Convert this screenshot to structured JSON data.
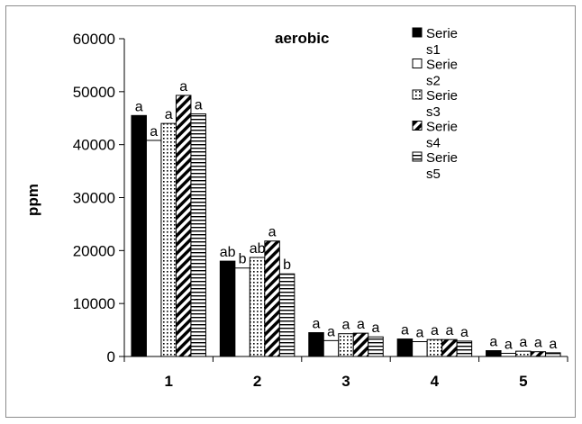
{
  "chart_data": {
    "type": "bar",
    "title": "aerobic",
    "xlabel": "",
    "ylabel": "ppm",
    "ylim": [
      0,
      60000
    ],
    "yticks": [
      "0",
      "10000",
      "20000",
      "30000",
      "40000",
      "50000",
      "60000"
    ],
    "categories": [
      "1",
      "2",
      "3",
      "4",
      "5"
    ],
    "legend_position": "top-right",
    "series": [
      {
        "name": "Series1",
        "legend_line1": "Serie",
        "legend_line2": "s1",
        "pattern": "solid",
        "values": [
          45500,
          18000,
          4500,
          3300,
          1100
        ],
        "letters": [
          "a",
          "ab",
          "a",
          "a",
          "a"
        ]
      },
      {
        "name": "Series2",
        "legend_line1": "Serie",
        "legend_line2": "s2",
        "pattern": "white",
        "values": [
          40800,
          16700,
          3000,
          2800,
          600
        ],
        "letters": [
          "a",
          "b",
          "a",
          "a",
          "a"
        ]
      },
      {
        "name": "Series3",
        "legend_line1": "Serie",
        "legend_line2": "s3",
        "pattern": "dots",
        "values": [
          44000,
          18700,
          4300,
          3200,
          1000
        ],
        "letters": [
          "a",
          "ab",
          "a",
          "a",
          "a"
        ]
      },
      {
        "name": "Series4",
        "legend_line1": "Serie",
        "legend_line2": "s4",
        "pattern": "diagonal",
        "values": [
          49300,
          21800,
          4400,
          3200,
          900
        ],
        "letters": [
          "a",
          "a",
          "a",
          "a",
          "a"
        ]
      },
      {
        "name": "Series5",
        "legend_line1": "Serie",
        "legend_line2": "s5",
        "pattern": "horizontal",
        "values": [
          45800,
          15600,
          3700,
          2900,
          700
        ],
        "letters": [
          "a",
          "b",
          "a",
          "a",
          "a"
        ]
      }
    ]
  }
}
